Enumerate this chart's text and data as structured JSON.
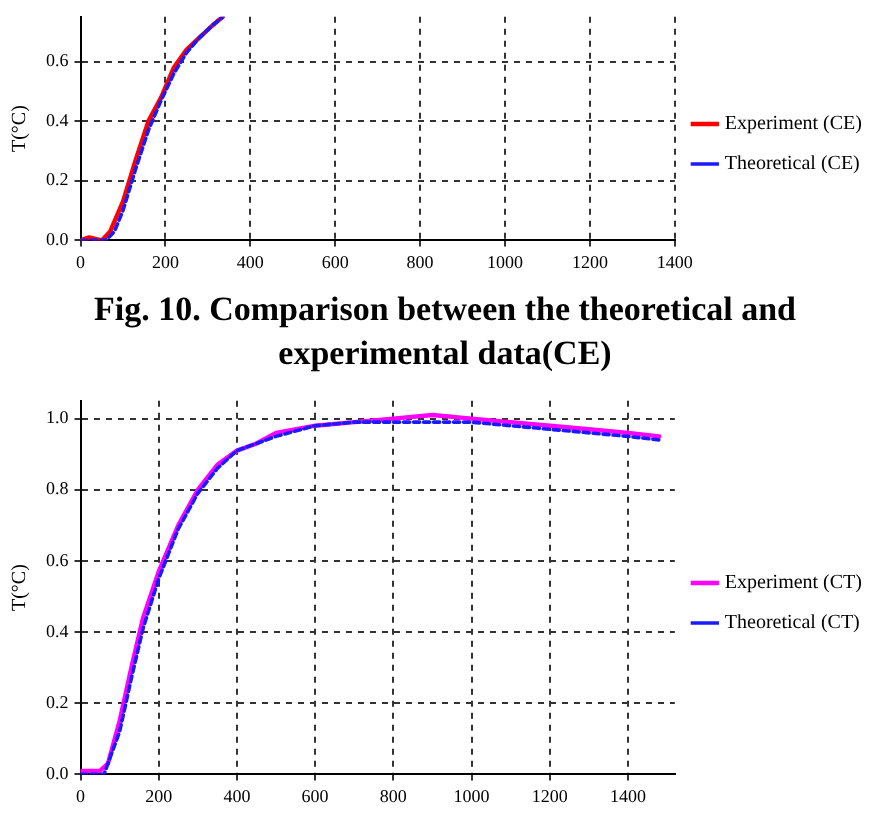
{
  "chart_data": [
    {
      "type": "line",
      "ylabel": "T(°C)",
      "xlim": [
        0,
        1400
      ],
      "xticks": [
        0,
        200,
        400,
        600,
        800,
        1000,
        1200,
        1400
      ],
      "ylim": [
        0,
        0.75
      ],
      "yticks": [
        {
          "value": 0,
          "label": "0.0"
        },
        {
          "value": 0.2,
          "label": "0.2"
        },
        {
          "value": 0.4,
          "label": "0.4"
        },
        {
          "value": 0.6,
          "label": "0.6"
        }
      ],
      "grid": true,
      "legend": "right",
      "marker": "none",
      "annotations": [
        "Fig. 10.   Comparison between the theoretical and experimental data(CE)"
      ],
      "series": [
        {
          "name": "Experiment (CE)",
          "color": "#ff0000",
          "line_style": "solid",
          "x": [
            0,
            20,
            50,
            70,
            100,
            130,
            160,
            190,
            220,
            250,
            280,
            310,
            335
          ],
          "values": [
            0,
            0.01,
            0,
            0.03,
            0.13,
            0.27,
            0.4,
            0.48,
            0.58,
            0.64,
            0.68,
            0.72,
            0.75
          ]
        },
        {
          "name": "Theoretical (CE)",
          "color": "#1a1aff",
          "line_style": "dashed",
          "x": [
            0,
            60,
            80,
            100,
            130,
            160,
            190,
            220,
            250,
            280,
            310,
            335
          ],
          "values": [
            0,
            0,
            0.03,
            0.1,
            0.24,
            0.37,
            0.47,
            0.56,
            0.63,
            0.68,
            0.72,
            0.75
          ]
        }
      ]
    },
    {
      "type": "line",
      "ylabel": "T(°C)",
      "xlim": [
        0,
        1520
      ],
      "xticks": [
        0,
        200,
        400,
        600,
        800,
        1000,
        1200,
        1400
      ],
      "ylim": [
        0,
        1.05
      ],
      "yticks": [
        {
          "value": 0,
          "label": "0.0"
        },
        {
          "value": 0.2,
          "label": "0.2"
        },
        {
          "value": 0.4,
          "label": "0.4"
        },
        {
          "value": 0.6,
          "label": "0.6"
        },
        {
          "value": 0.8,
          "label": "0.8"
        },
        {
          "value": 1,
          "label": "1.0"
        }
      ],
      "grid": true,
      "legend": "right",
      "marker": "none",
      "series": [
        {
          "name": "Experiment (CT)",
          "color": "#ff00ff",
          "line_style": "solid",
          "x": [
            0,
            50,
            70,
            100,
            130,
            160,
            200,
            250,
            300,
            350,
            400,
            450,
            500,
            600,
            700,
            800,
            900,
            1000,
            1100,
            1200,
            1300,
            1400,
            1480
          ],
          "values": [
            0.01,
            0.01,
            0.03,
            0.15,
            0.3,
            0.44,
            0.57,
            0.7,
            0.8,
            0.87,
            0.91,
            0.93,
            0.96,
            0.98,
            0.99,
            1.0,
            1.01,
            1.0,
            0.99,
            0.98,
            0.97,
            0.96,
            0.95
          ]
        },
        {
          "name": "Theoretical (CT)",
          "color": "#1a1aff",
          "line_style": "dashed",
          "x": [
            0,
            60,
            100,
            130,
            160,
            200,
            250,
            300,
            350,
            400,
            500,
            600,
            700,
            800,
            1000,
            1200,
            1400,
            1480
          ],
          "values": [
            0,
            0,
            0.12,
            0.27,
            0.41,
            0.55,
            0.69,
            0.79,
            0.86,
            0.91,
            0.95,
            0.98,
            0.99,
            0.99,
            0.99,
            0.97,
            0.95,
            0.94
          ]
        }
      ]
    }
  ]
}
